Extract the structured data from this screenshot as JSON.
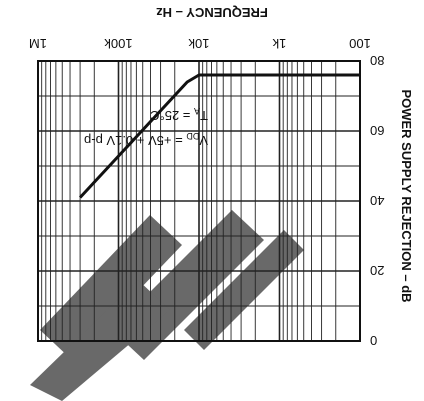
{
  "chart_data": {
    "type": "line",
    "orientation": "rotated-180",
    "xlabel": "FREQUENCY – Hz",
    "ylabel": "POWER SUPPLY REJECTION – dB",
    "x_scale": "log",
    "xlim": [
      100,
      1000000
    ],
    "ylim": [
      0,
      80
    ],
    "y_direction": "down",
    "x_ticks": [
      100,
      1000,
      10000,
      100000,
      1000000
    ],
    "x_tick_labels": [
      "100",
      "1k",
      "10k",
      "100k",
      "1M"
    ],
    "y_ticks": [
      0,
      20,
      40,
      60,
      80
    ],
    "y_tick_labels": [
      "0",
      "20",
      "40",
      "60",
      "80"
    ],
    "grid": true,
    "annotation": {
      "line1": "V",
      "line1_sub": "DD",
      "line1_rest": " = +5V + 0.1V p-p",
      "line2": "T",
      "line2_sub": "A",
      "line2_rest": " = 25°C"
    },
    "series": [
      {
        "x": [
          100,
          1000,
          10000,
          14000,
          300000
        ],
        "y": [
          76,
          76,
          76,
          74,
          41
        ]
      }
    ],
    "colors": {
      "curve": "#111111",
      "grid": "#222222",
      "watermark": "#4f4f4f"
    }
  }
}
